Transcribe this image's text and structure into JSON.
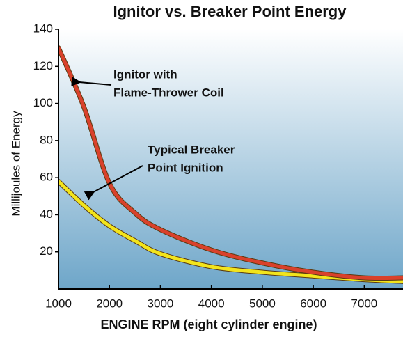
{
  "chart_data": {
    "type": "line",
    "title": "Ignitor vs. Breaker Point Energy",
    "x_label": "ENGINE RPM (eight cylinder engine)",
    "y_label": "Millijoules of Energy",
    "x": [
      1000,
      1500,
      2000,
      2500,
      3000,
      4000,
      5000,
      6000,
      7000,
      7760
    ],
    "series": [
      {
        "name": "Ignitor with Flame-Thrower Coil",
        "color": "#d9412b",
        "values": [
          130,
          98,
          57,
          41,
          32,
          21,
          14,
          9,
          6,
          6
        ]
      },
      {
        "name": "Typical Breaker Point Ignition",
        "color": "#f2e41c",
        "values": [
          58,
          45,
          34,
          26,
          19,
          12,
          9,
          7,
          5,
          4
        ]
      }
    ],
    "annotations": [
      {
        "lines": [
          "Ignitor with",
          "Flame-Thrower Coil"
        ]
      },
      {
        "lines": [
          "Typical Breaker",
          "Point Ignition"
        ]
      }
    ],
    "xlim": [
      1000,
      7760
    ],
    "xticks": [
      1000,
      2000,
      3000,
      4000,
      5000,
      6000,
      7000
    ],
    "ylim": [
      0,
      140
    ],
    "yticks": [
      20,
      40,
      60,
      80,
      100,
      120,
      140
    ]
  }
}
